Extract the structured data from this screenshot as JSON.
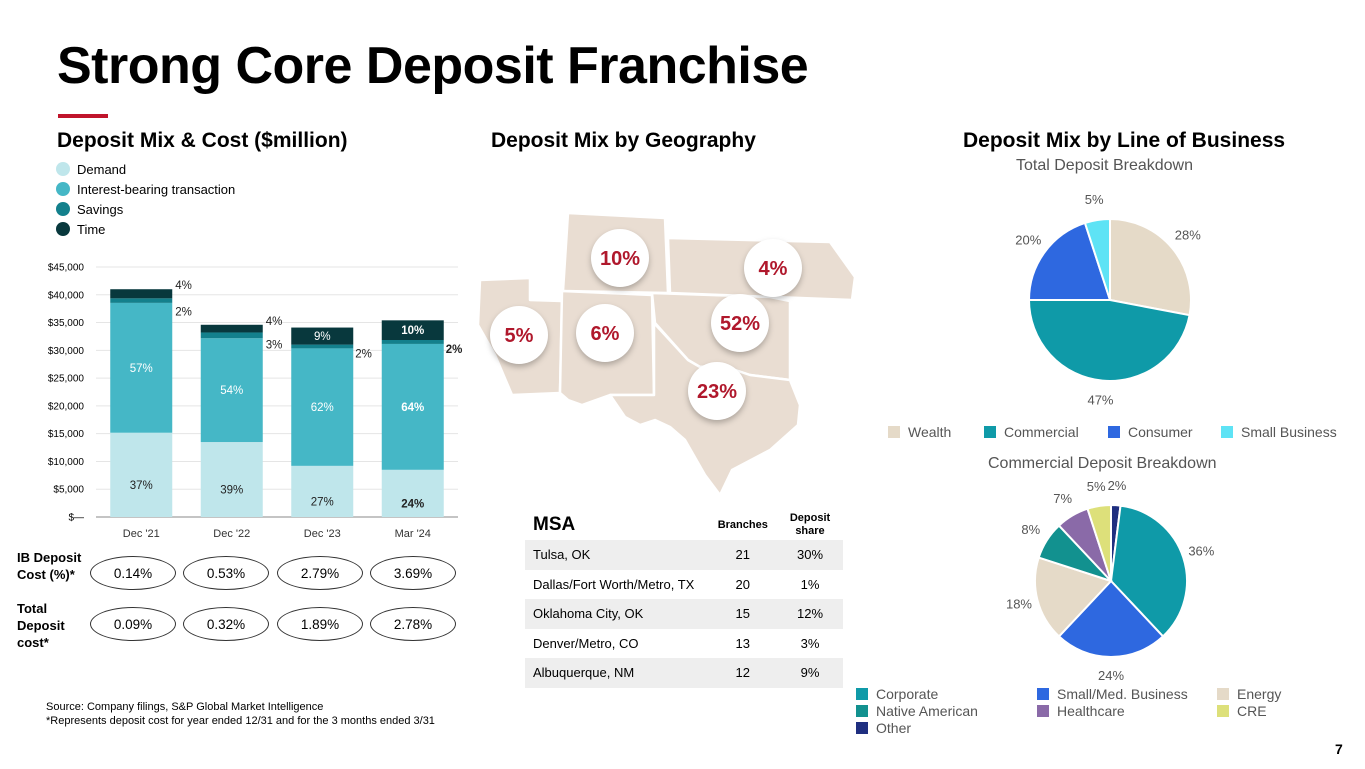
{
  "title": "Strong Core Deposit Franchise",
  "page_number": "7",
  "mix_cost": {
    "heading": "Deposit Mix & Cost ($million)",
    "legend": [
      {
        "label": "Demand",
        "color": "#bfe6eb"
      },
      {
        "label": "Interest-bearing transaction",
        "color": "#45b7c6"
      },
      {
        "label": "Savings",
        "color": "#13808c"
      },
      {
        "label": "Time",
        "color": "#08383d"
      }
    ],
    "ib_label": "IB Deposit Cost (%)*",
    "total_label": "Total Deposit cost*",
    "ib_costs": [
      "0.14%",
      "0.53%",
      "2.79%",
      "3.69%"
    ],
    "total_costs": [
      "0.09%",
      "0.32%",
      "1.89%",
      "2.78%"
    ]
  },
  "geo": {
    "heading": "Deposit Mix by Geography",
    "map_values": [
      "10%",
      "4%",
      "5%",
      "6%",
      "52%",
      "23%"
    ],
    "table": {
      "headers": [
        "MSA",
        "Branches",
        "Deposit share"
      ],
      "rows": [
        [
          "Tulsa, OK",
          "21",
          "30%"
        ],
        [
          "Dallas/Fort Worth/Metro, TX",
          "20",
          "1%"
        ],
        [
          "Oklahoma City, OK",
          "15",
          "12%"
        ],
        [
          "Denver/Metro, CO",
          "13",
          "3%"
        ],
        [
          "Albuquerque, NM",
          "12",
          "9%"
        ]
      ]
    }
  },
  "lob": {
    "heading": "Deposit Mix by Line of Business",
    "total_title": "Total Deposit Breakdown",
    "commercial_title": "Commercial Deposit Breakdown"
  },
  "footnotes": {
    "source": "Source: Company filings, S&P Global Market Intelligence",
    "note": "*Represents deposit cost for year ended 12/31 and for the 3 months ended 3/31"
  },
  "chart_data": [
    {
      "type": "bar",
      "stacked": true,
      "categories": [
        "Dec '21",
        "Dec '22",
        "Dec '23",
        "Mar '24"
      ],
      "ylim": [
        0,
        45000
      ],
      "yticks": [
        "$—",
        "$5,000",
        "$10,000",
        "$15,000",
        "$20,000",
        "$25,000",
        "$30,000",
        "$35,000",
        "$40,000",
        "$45,000"
      ],
      "totals": [
        41000,
        34600,
        34100,
        35400
      ],
      "series": [
        {
          "name": "Demand",
          "color": "#bfe6eb",
          "shares": [
            37,
            39,
            27,
            24
          ],
          "labels": [
            "37%",
            "39%",
            "27%",
            "24%"
          ]
        },
        {
          "name": "Interest-bearing transaction",
          "color": "#45b7c6",
          "shares": [
            57,
            54,
            62,
            64
          ],
          "labels": [
            "57%",
            "54%",
            "62%",
            "64%"
          ]
        },
        {
          "name": "Savings",
          "color": "#13808c",
          "shares": [
            2,
            3,
            2,
            2
          ],
          "labels": [
            "2%",
            "3%",
            "2%",
            "2%"
          ]
        },
        {
          "name": "Time",
          "color": "#08383d",
          "shares": [
            4,
            4,
            9,
            10
          ],
          "labels": [
            "4%",
            "4%",
            "9%",
            "10%"
          ]
        }
      ]
    },
    {
      "type": "pie",
      "title": "Total Deposit Breakdown",
      "slices": [
        {
          "name": "Wealth",
          "value": 28,
          "label": "28%",
          "color": "#e5dac8"
        },
        {
          "name": "Commercial",
          "value": 47,
          "label": "47%",
          "color": "#0f9aa8"
        },
        {
          "name": "Consumer",
          "value": 20,
          "label": "20%",
          "color": "#2e68e0"
        },
        {
          "name": "Small Business",
          "value": 5,
          "label": "5%",
          "color": "#5ee3f5"
        }
      ],
      "legend_position": "bottom"
    },
    {
      "type": "pie",
      "title": "Commercial Deposit Breakdown",
      "slices": [
        {
          "name": "Other",
          "value": 2,
          "label": "2%",
          "color": "#1f2f80"
        },
        {
          "name": "Corporate",
          "value": 36,
          "label": "36%",
          "color": "#0f9aa8"
        },
        {
          "name": "Small/Med. Business",
          "value": 24,
          "label": "24%",
          "color": "#2e68e0"
        },
        {
          "name": "Energy",
          "value": 18,
          "label": "18%",
          "color": "#e5dac8"
        },
        {
          "name": "Native American",
          "value": 8,
          "label": "8%",
          "color": "#12918f"
        },
        {
          "name": "Healthcare",
          "value": 7,
          "label": "7%",
          "color": "#8a6aa8"
        },
        {
          "name": "CRE",
          "value": 5,
          "label": "5%",
          "color": "#dde07a"
        }
      ],
      "legend_position": "bottom"
    }
  ]
}
